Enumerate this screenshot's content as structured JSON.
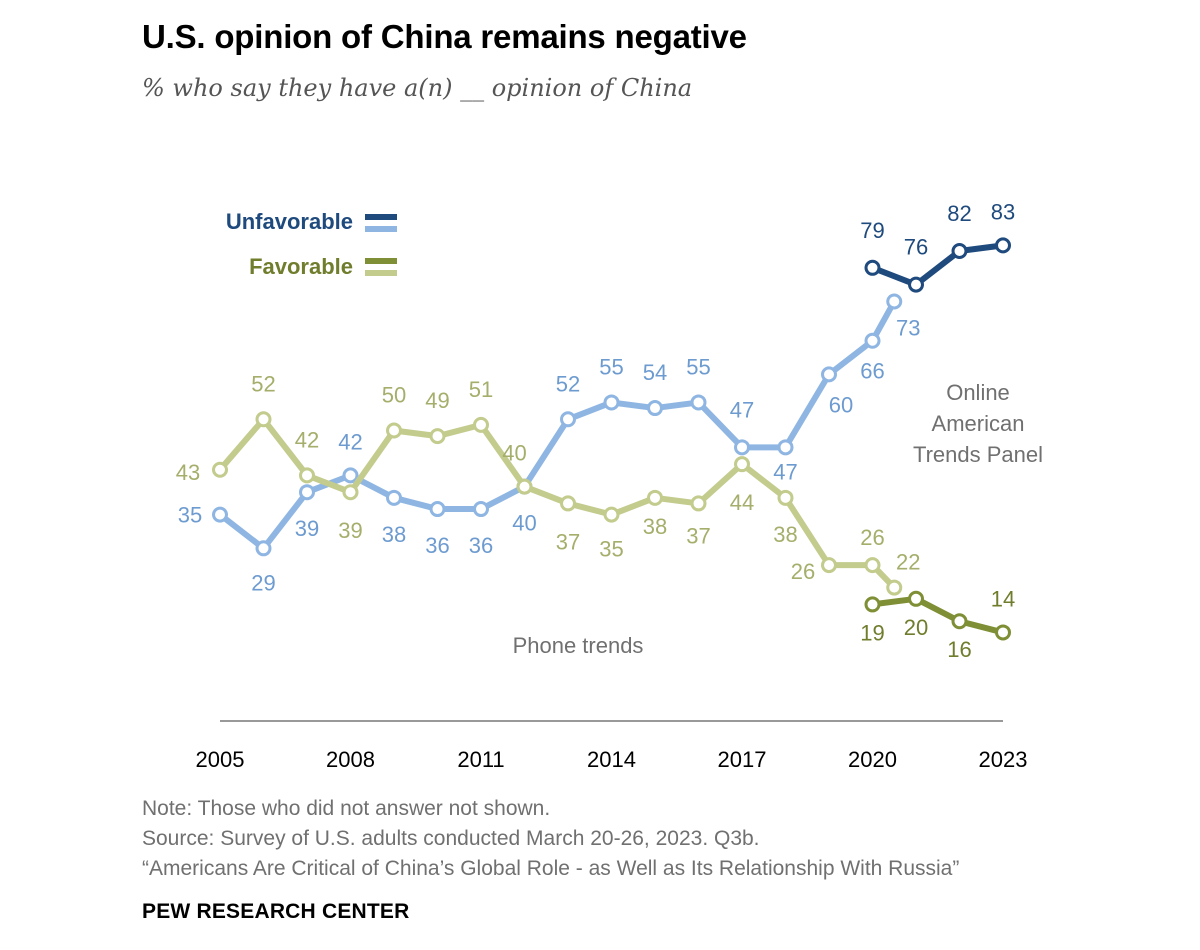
{
  "title": "U.S. opinion of China remains negative",
  "subtitle": "% who say they have a(n) __ opinion of China",
  "legend": {
    "unfavorable_label": "Unfavorable",
    "favorable_label": "Favorable"
  },
  "annotations": {
    "phone": "Phone trends",
    "online": [
      "Online",
      "American",
      "Trends Panel"
    ]
  },
  "notes": {
    "note": "Note: Those who did not answer not shown.",
    "source": "Source: Survey of U.S. adults conducted March 20-26, 2023. Q3b.",
    "report": "“Americans Are Critical of China’s Global Role - as Well as Its Relationship With Russia”"
  },
  "brand": "PEW RESEARCH CENTER",
  "colors": {
    "unfav_phone": "#8fb6e2",
    "unfav_online": "#1f4a7d",
    "fav_phone": "#c3cb8d",
    "fav_online": "#7f8f35",
    "unfav_label_phone": "#6d9bd0",
    "unfav_label_online": "#1f4a7d",
    "fav_label_phone": "#a6ae6b",
    "fav_label_online": "#6f7d2c",
    "axis": "#999999",
    "annotation": "#707070"
  },
  "chart_data": {
    "type": "line",
    "xlim": [
      2005,
      2023
    ],
    "ylim": [
      0,
      100
    ],
    "x_ticks": [
      "2005",
      "2008",
      "2011",
      "2014",
      "2017",
      "2020",
      "2023"
    ],
    "legend_placement": "top-left",
    "grid": false,
    "series": [
      {
        "name": "Unfavorable",
        "mode": "Phone trends",
        "points": [
          {
            "x": 2005,
            "y": 35
          },
          {
            "x": 2006,
            "y": 29
          },
          {
            "x": 2007,
            "y": 39
          },
          {
            "x": 2008,
            "y": 42
          },
          {
            "x": 2009,
            "y": 38
          },
          {
            "x": 2010,
            "y": 36
          },
          {
            "x": 2011,
            "y": 36
          },
          {
            "x": 2012,
            "y": 40
          },
          {
            "x": 2013,
            "y": 52
          },
          {
            "x": 2014,
            "y": 55
          },
          {
            "x": 2015,
            "y": 54
          },
          {
            "x": 2016,
            "y": 55
          },
          {
            "x": 2017,
            "y": 47
          },
          {
            "x": 2018,
            "y": 47
          },
          {
            "x": 2019,
            "y": 60
          },
          {
            "x": 2020,
            "y": 66
          },
          {
            "x": 2020.5,
            "y": 73
          }
        ]
      },
      {
        "name": "Unfavorable",
        "mode": "Online American Trends Panel",
        "points": [
          {
            "x": 2020,
            "y": 79
          },
          {
            "x": 2021,
            "y": 76
          },
          {
            "x": 2022,
            "y": 82
          },
          {
            "x": 2023,
            "y": 83
          }
        ]
      },
      {
        "name": "Favorable",
        "mode": "Phone trends",
        "points": [
          {
            "x": 2005,
            "y": 43
          },
          {
            "x": 2006,
            "y": 52
          },
          {
            "x": 2007,
            "y": 42
          },
          {
            "x": 2008,
            "y": 39
          },
          {
            "x": 2009,
            "y": 50
          },
          {
            "x": 2010,
            "y": 49
          },
          {
            "x": 2011,
            "y": 51
          },
          {
            "x": 2012,
            "y": 40
          },
          {
            "x": 2013,
            "y": 37
          },
          {
            "x": 2014,
            "y": 35
          },
          {
            "x": 2015,
            "y": 38
          },
          {
            "x": 2016,
            "y": 37
          },
          {
            "x": 2017,
            "y": 44
          },
          {
            "x": 2018,
            "y": 38
          },
          {
            "x": 2019,
            "y": 26
          },
          {
            "x": 2020,
            "y": 26
          },
          {
            "x": 2020.5,
            "y": 22
          }
        ]
      },
      {
        "name": "Favorable",
        "mode": "Online American Trends Panel",
        "points": [
          {
            "x": 2020,
            "y": 19
          },
          {
            "x": 2021,
            "y": 20
          },
          {
            "x": 2022,
            "y": 16
          },
          {
            "x": 2023,
            "y": 14
          }
        ]
      }
    ]
  }
}
